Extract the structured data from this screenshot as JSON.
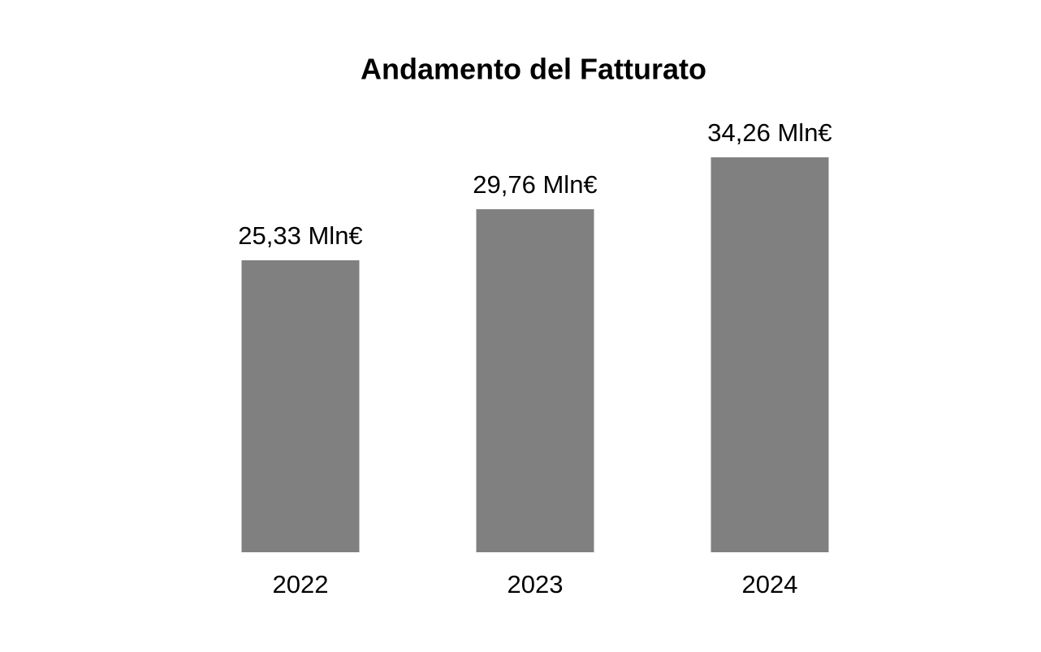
{
  "chart_data": {
    "type": "bar",
    "title": "Andamento del Fatturato",
    "categories": [
      "2022",
      "2023",
      "2024"
    ],
    "values": [
      25.33,
      29.76,
      34.26
    ],
    "value_labels": [
      "25,33 Mln€",
      "29,76 Mln€",
      "34,26 Mln€"
    ],
    "color": "#808080"
  }
}
